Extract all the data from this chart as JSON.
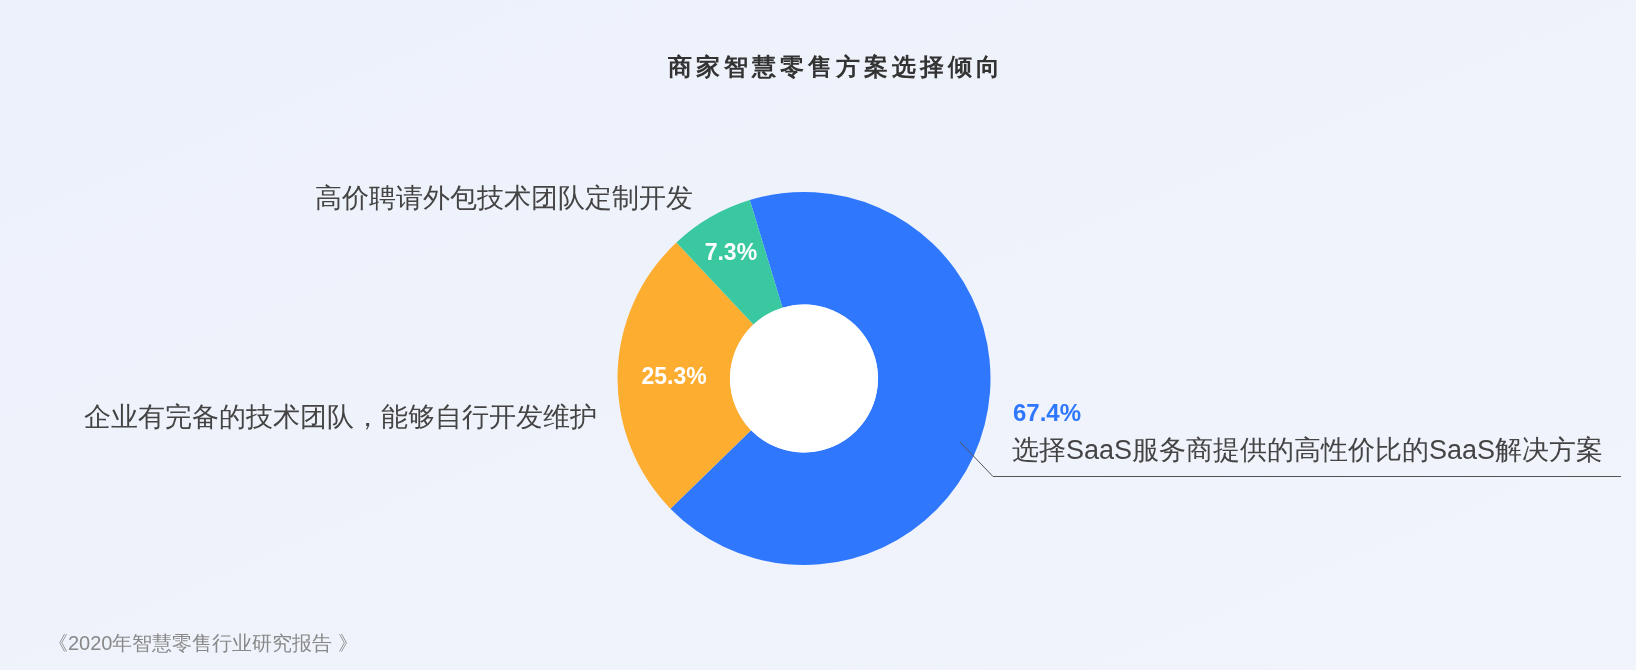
{
  "chart_data": {
    "type": "donut",
    "title": "商家智慧零售方案选择倾向",
    "categories": [
      "选择SaaS服务商提供的高性价比的SaaS解决方案",
      "企业有完备的技术团队，能够自行开发维护",
      "高价聘请外包技术团队定制开发"
    ],
    "values": [
      67.4,
      25.3,
      7.3
    ],
    "colors": [
      "#2f78fe",
      "#fdae31",
      "#3ac8a0"
    ],
    "value_labels": [
      "67.4%",
      "25.3%",
      "7.3%"
    ],
    "annotations": [
      "《2020年智慧零售行业研究报告 》"
    ]
  }
}
